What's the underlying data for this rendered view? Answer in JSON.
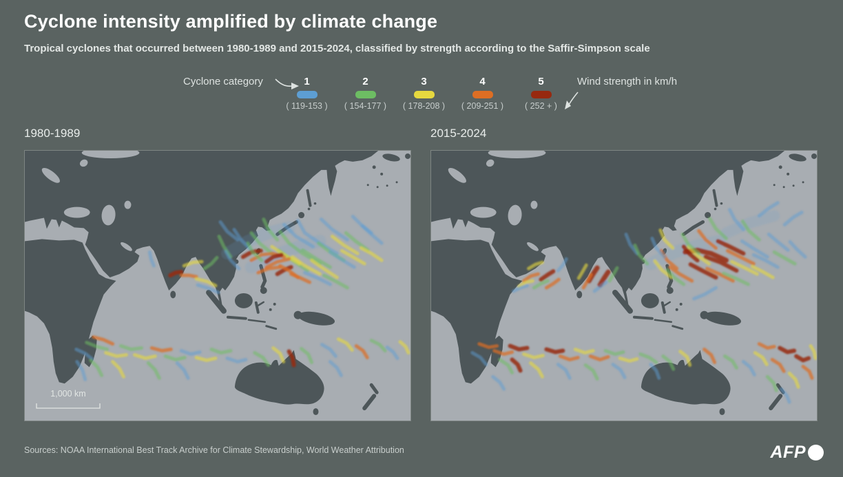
{
  "title": "Cyclone intensity amplified by climate change",
  "subtitle": "Tropical cyclones that occurred between 1980-1989 and 2015-2024, classified by strength according to the Saffir-Simpson scale",
  "legend": {
    "category_label": "Cyclone category",
    "wind_label": "Wind strength in km/h",
    "categories": [
      {
        "number": "1",
        "range": "( 119-153 )",
        "color": "#5d9ed3"
      },
      {
        "number": "2",
        "range": "( 154-177 )",
        "color": "#6dbd63"
      },
      {
        "number": "3",
        "range": "( 178-208 )",
        "color": "#e6d83f"
      },
      {
        "number": "4",
        "range": "( 209-251 )",
        "color": "#dd6e24"
      },
      {
        "number": "5",
        "range": "( 252 + )",
        "color": "#97290f"
      }
    ]
  },
  "colors": {
    "background": "#5a6361",
    "ocean": "#a8adb2",
    "land": "#4d5659"
  },
  "footer": {
    "sources": "Sources: NOAA International Best Track Archive for Climate Stewardship, World Weather Attribution",
    "brand": "AFP"
  },
  "chart_data": {
    "type": "heatmap",
    "title": "Cyclone intensity amplified by climate change",
    "legend_entries": [
      "1 (119-153)",
      "2 (154-177)",
      "3 (178-208)",
      "4 (209-251)",
      "5 (252+)"
    ],
    "units": "km/h",
    "panels": [
      "1980-1989",
      "2015-2024"
    ]
  },
  "maps": [
    {
      "label": "1980-1989",
      "scale_label": "1,000 km",
      "tracks": [
        {
          "c": 1,
          "w": 18,
          "o": 0.16,
          "p": "295,150 325,132 355,120 385,112"
        },
        {
          "c": 1,
          "w": 18,
          "o": 0.14,
          "p": "330,170 365,152 400,140 430,132"
        },
        {
          "c": 1,
          "p": "420,140 395,125 378,108"
        },
        {
          "c": 1,
          "p": "455,150 430,135 408,120 398,102"
        },
        {
          "c": 1,
          "p": "470,130 448,115 432,100"
        },
        {
          "c": 1,
          "p": "310,130 295,118 285,104"
        },
        {
          "c": 1,
          "p": "330,145 315,130 305,115"
        },
        {
          "c": 2,
          "p": "430,165 405,150 385,135 372,118"
        },
        {
          "c": 2,
          "p": "412,175 390,160 370,145"
        },
        {
          "c": 2,
          "p": "360,150 342,135 330,120"
        },
        {
          "c": 2,
          "p": "445,170 425,158 405,145"
        },
        {
          "c": 2,
          "p": "465,160 445,148 428,135"
        },
        {
          "c": 3,
          "p": "400,165 378,152 360,140"
        },
        {
          "c": 3,
          "p": "430,180 408,168 390,155"
        },
        {
          "c": 3,
          "p": "455,185 435,172 418,160"
        },
        {
          "c": 3,
          "p": "485,150 465,138 448,125"
        },
        {
          "c": 4,
          "p": "330,160 345,152 362,150 378,155"
        },
        {
          "c": 4,
          "p": "352,170 368,162 385,158"
        },
        {
          "c": 4,
          "p": "340,178 355,172 372,170"
        },
        {
          "c": 5,
          "w": 6,
          "p": "318,155 330,148 344,146"
        },
        {
          "c": 5,
          "w": 6,
          "p": "352,162 362,155 374,152"
        },
        {
          "c": 5,
          "w": 6,
          "p": "368,180 378,174 388,170"
        },
        {
          "c": 4,
          "p": "398,185 385,175 372,168"
        },
        {
          "c": 2,
          "p": "300,155 290,140 283,125"
        },
        {
          "c": 1,
          "p": "480,170 460,158 445,148"
        },
        {
          "c": 2,
          "p": "500,145 482,132 468,120"
        },
        {
          "c": 1,
          "p": "505,120 490,108 478,96"
        },
        {
          "c": 3,
          "p": "495,165 478,155 462,146"
        },
        {
          "c": 1,
          "p": "445,195 425,185 408,178"
        },
        {
          "c": 2,
          "p": "470,200 452,190 436,182"
        },
        {
          "c": 4,
          "p": "415,192 400,185 388,180"
        },
        {
          "c": 1,
          "p": "520,135 505,122 492,110"
        },
        {
          "c": 2,
          "p": "368,130 355,115 348,100"
        },
        {
          "c": 3,
          "p": "520,160 505,150 490,142"
        },
        {
          "c": 2,
          "p": "345,160 332,148 325,135"
        },
        {
          "c": 1,
          "p": "312,172 300,160 293,147"
        },
        {
          "c": 5,
          "w": 6,
          "p": "212,182 220,178 228,177"
        },
        {
          "c": 4,
          "p": "228,182 240,182 250,184"
        },
        {
          "c": 3,
          "p": "232,168 245,163 258,162"
        },
        {
          "c": 2,
          "p": "262,172 272,165 280,156"
        },
        {
          "c": 1,
          "p": "252,196 268,201 282,207"
        },
        {
          "c": 3,
          "p": "250,187 266,191 278,197"
        },
        {
          "c": 1,
          "p": "188,168 184,158 182,148"
        },
        {
          "c": 2,
          "p": "90,280 105,286 120,290"
        },
        {
          "c": 4,
          "p": "100,272 115,276 128,282"
        },
        {
          "c": 1,
          "p": "75,290 88,296 98,304"
        },
        {
          "c": 3,
          "p": "118,295 134,300 148,298"
        },
        {
          "c": 2,
          "p": "140,285 155,290 170,288"
        },
        {
          "c": 3,
          "p": "160,298 176,303 190,300"
        },
        {
          "c": 4,
          "p": "185,288 200,292 213,290"
        },
        {
          "c": 2,
          "p": "205,300 220,305 233,302"
        },
        {
          "c": 1,
          "p": "228,292 242,297 255,294"
        },
        {
          "c": 3,
          "p": "250,302 265,306 278,303"
        },
        {
          "c": 2,
          "p": "272,290 286,295 300,292"
        },
        {
          "c": 1,
          "p": "295,303 310,308 322,305"
        },
        {
          "c": 2,
          "p": "96,306 106,316 112,328"
        },
        {
          "c": 1,
          "p": "76,308 84,320 88,334"
        },
        {
          "c": 3,
          "p": "128,308 138,318 144,330"
        },
        {
          "c": 2,
          "p": "180,310 190,320 196,332"
        },
        {
          "c": 1,
          "p": "222,310 232,320 238,332"
        },
        {
          "c": 2,
          "p": "335,295 347,302 355,313"
        },
        {
          "c": 3,
          "p": "362,288 372,296 377,308"
        },
        {
          "c": 5,
          "w": 6,
          "p": "385,293 390,302 392,313"
        },
        {
          "c": 2,
          "p": "403,289 413,297 418,309"
        },
        {
          "c": 1,
          "p": "433,283 445,290 453,300"
        },
        {
          "c": 3,
          "p": "457,275 469,281 477,291"
        },
        {
          "c": 4,
          "p": "483,285 493,292 499,302"
        },
        {
          "c": 2,
          "p": "505,277 517,283 525,292"
        },
        {
          "c": 1,
          "p": "528,287 537,294 543,303"
        },
        {
          "c": 3,
          "p": "547,279 555,286 559,295"
        },
        {
          "c": 1,
          "p": "445,308 455,317 461,328"
        }
      ]
    },
    {
      "label": "2015-2024",
      "scale_label": "",
      "tracks": [
        {
          "c": 1,
          "w": 18,
          "o": 0.15,
          "p": "320,165 355,148 390,138 420,132"
        },
        {
          "c": 1,
          "w": 16,
          "o": 0.14,
          "p": "430,120 465,105 500,95"
        },
        {
          "c": 4,
          "p": "135,190 145,183 156,180"
        },
        {
          "c": 5,
          "w": 6,
          "p": "160,188 170,181 178,176"
        },
        {
          "c": 3,
          "p": "128,198 138,192 148,190"
        },
        {
          "c": 2,
          "p": "150,200 160,194 170,190"
        },
        {
          "c": 1,
          "p": "120,205 130,200 140,197"
        },
        {
          "c": 4,
          "p": "168,200 178,194 186,188"
        },
        {
          "c": 3,
          "p": "142,172 152,166 162,163"
        },
        {
          "c": 1,
          "p": "185,175 192,167 197,158"
        },
        {
          "c": 5,
          "w": 7,
          "p": "230,190 236,180 242,171"
        },
        {
          "c": 5,
          "w": 7,
          "p": "246,196 252,186 258,177"
        },
        {
          "c": 4,
          "p": "222,200 228,190 233,181"
        },
        {
          "c": 2,
          "p": "260,190 266,180 271,171"
        },
        {
          "c": 1,
          "p": "238,205 247,198 255,192"
        },
        {
          "c": 3,
          "p": "215,186 221,176 226,167"
        },
        {
          "c": 5,
          "w": 7,
          "p": "430,160 408,150 388,145 370,148"
        },
        {
          "c": 5,
          "w": 6,
          "p": "445,175 422,163 400,155"
        },
        {
          "c": 5,
          "w": 6,
          "p": "415,185 395,175 378,166"
        },
        {
          "c": 5,
          "w": 6,
          "p": "455,150 435,140 418,132"
        },
        {
          "c": 4,
          "p": "380,190 362,180 348,170"
        },
        {
          "c": 4,
          "p": "440,190 420,180 402,172"
        },
        {
          "c": 4,
          "p": "470,165 450,155 432,146"
        },
        {
          "c": 4,
          "p": "358,172 344,160 335,146"
        },
        {
          "c": 3,
          "p": "475,180 455,170 438,162"
        },
        {
          "c": 3,
          "p": "405,165 388,153 375,140"
        },
        {
          "c": 3,
          "p": "350,185 336,174 326,161"
        },
        {
          "c": 2,
          "p": "462,195 443,186 426,179"
        },
        {
          "c": 2,
          "p": "390,150 375,137 366,122"
        },
        {
          "c": 2,
          "p": "430,128 415,114 406,99"
        },
        {
          "c": 1,
          "p": "490,155 470,143 453,132"
        },
        {
          "c": 1,
          "p": "505,170 487,160 470,152"
        },
        {
          "c": 1,
          "p": "455,115 442,100 435,86"
        },
        {
          "c": 2,
          "p": "478,130 463,117 454,103"
        },
        {
          "c": 1,
          "p": "340,155 328,142 322,128"
        },
        {
          "c": 1,
          "p": "520,145 505,133 492,122"
        },
        {
          "c": 2,
          "p": "530,165 514,156 500,148"
        },
        {
          "c": 3,
          "p": "498,185 482,176 468,169"
        },
        {
          "c": 4,
          "p": "415,142 400,130 390,117"
        },
        {
          "c": 5,
          "w": 6,
          "p": "388,160 376,150 368,140"
        },
        {
          "c": 1,
          "p": "415,200 398,210 383,216"
        },
        {
          "c": 1,
          "p": "478,95 492,84 505,76"
        },
        {
          "c": 1,
          "p": "515,108 528,97 540,90"
        },
        {
          "c": 2,
          "p": "368,195 354,185 344,174"
        },
        {
          "c": 1,
          "p": "300,150 290,137 284,122"
        },
        {
          "c": 2,
          "p": "315,165 303,152 297,138"
        },
        {
          "c": 1,
          "p": "545,155 533,144 523,133"
        },
        {
          "c": 3,
          "p": "352,142 340,130 334,116"
        },
        {
          "c": 4,
          "p": "70,282 84,287 96,285"
        },
        {
          "c": 4,
          "p": "92,292 106,297 118,294"
        },
        {
          "c": 5,
          "w": 6,
          "p": "115,285 128,290 140,288"
        },
        {
          "c": 3,
          "p": "135,297 150,302 163,299"
        },
        {
          "c": 5,
          "w": 6,
          "p": "168,290 181,294 192,292"
        },
        {
          "c": 4,
          "p": "188,300 202,305 214,302"
        },
        {
          "c": 3,
          "p": "210,290 224,295 236,292"
        },
        {
          "c": 4,
          "p": "232,300 246,305 258,301"
        },
        {
          "c": 2,
          "p": "254,292 268,297 280,294"
        },
        {
          "c": 3,
          "p": "275,303 289,307 300,304"
        },
        {
          "c": 1,
          "p": "60,295 72,302 80,312"
        },
        {
          "c": 2,
          "p": "100,305 112,313 118,324"
        },
        {
          "c": 3,
          "p": "145,310 156,319 162,330"
        },
        {
          "c": 1,
          "p": "185,312 196,320 202,332"
        },
        {
          "c": 2,
          "p": "225,313 236,321 242,333"
        },
        {
          "c": 1,
          "p": "265,312 276,320 282,331"
        },
        {
          "c": 2,
          "p": "305,297 318,302 328,309"
        },
        {
          "c": 1,
          "p": "90,330 100,338 106,348"
        },
        {
          "c": 5,
          "w": 6,
          "p": "118,305 126,312 130,321"
        },
        {
          "c": 2,
          "p": "338,300 348,308 353,319"
        },
        {
          "c": 3,
          "p": "363,293 373,301 377,313"
        },
        {
          "c": 4,
          "p": "398,290 408,298 413,309"
        },
        {
          "c": 2,
          "p": "428,300 439,307 445,317"
        },
        {
          "c": 1,
          "p": "455,308 465,316 471,327"
        },
        {
          "c": 3,
          "p": "472,295 483,302 489,312"
        },
        {
          "c": 5,
          "w": 6,
          "p": "508,288 519,294 529,292"
        },
        {
          "c": 5,
          "w": 6,
          "p": "532,300 542,306 550,303"
        },
        {
          "c": 4,
          "p": "497,305 508,312 514,322"
        },
        {
          "c": 4,
          "p": "542,315 551,322 555,332"
        },
        {
          "c": 3,
          "p": "522,325 531,334 535,345"
        },
        {
          "c": 2,
          "p": "490,330 499,339 503,350"
        },
        {
          "c": 1,
          "p": "510,348 518,357 522,367"
        },
        {
          "c": 3,
          "p": "553,285 558,293 560,303"
        },
        {
          "c": 1,
          "p": "320,312 328,321 332,332"
        },
        {
          "c": 4,
          "p": "478,282 490,288 500,286"
        }
      ]
    }
  ]
}
